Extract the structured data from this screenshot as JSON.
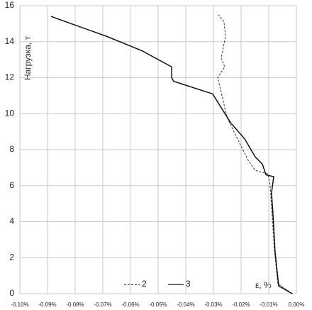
{
  "chart_data": {
    "type": "line",
    "x_label": "ε, %",
    "y_label": "Нагрузка, т",
    "xlim": [
      -0.1,
      0.0
    ],
    "ylim": [
      0,
      16
    ],
    "xticks": [
      {
        "value": -0.1,
        "label": "-0.10%"
      },
      {
        "value": -0.09,
        "label": "-0.09%"
      },
      {
        "value": -0.08,
        "label": "-0.08%"
      },
      {
        "value": -0.07,
        "label": "-0.07%"
      },
      {
        "value": -0.06,
        "label": "-0.06%"
      },
      {
        "value": -0.05,
        "label": "-0.05%"
      },
      {
        "value": -0.04,
        "label": "-0.04%"
      },
      {
        "value": -0.03,
        "label": "-0.03%"
      },
      {
        "value": -0.02,
        "label": "-0.02%"
      },
      {
        "value": -0.01,
        "label": "-0.01%"
      },
      {
        "value": 0.0,
        "label": "0.00%"
      }
    ],
    "yticks": [
      0,
      2,
      4,
      6,
      8,
      10,
      12,
      14,
      16
    ],
    "grid": true,
    "series": [
      {
        "name": "2",
        "color": "#333333",
        "line_style": "dashed",
        "x": [
          -0.0015,
          -0.0067,
          -0.008,
          -0.009,
          -0.0095,
          -0.0103,
          -0.0149,
          -0.0174,
          -0.0226,
          -0.0251,
          -0.0272,
          -0.0285,
          -0.0259,
          -0.0272,
          -0.0256,
          -0.0262,
          -0.0282
        ],
        "values": [
          0,
          0.55,
          2.5,
          4.9,
          6.0,
          6.65,
          6.85,
          7.4,
          9.0,
          9.8,
          11.2,
          12.0,
          12.6,
          13.1,
          14.3,
          15.1,
          15.5
        ]
      },
      {
        "name": "3",
        "color": "#111111",
        "line_style": "solid",
        "x": [
          -0.0015,
          -0.0064,
          -0.0077,
          -0.0085,
          -0.009,
          -0.0082,
          -0.011,
          -0.0123,
          -0.0149,
          -0.0187,
          -0.0238,
          -0.0303,
          -0.0444,
          -0.0451,
          -0.0451,
          -0.0559,
          -0.0687,
          -0.0887
        ],
        "values": [
          0,
          0.43,
          2.3,
          4.5,
          5.6,
          6.5,
          6.6,
          7.2,
          7.6,
          8.6,
          9.5,
          11.1,
          11.8,
          12.0,
          12.6,
          13.5,
          14.3,
          15.4
        ]
      }
    ]
  }
}
